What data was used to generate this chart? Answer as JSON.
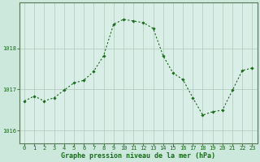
{
  "x": [
    0,
    1,
    2,
    3,
    4,
    5,
    6,
    7,
    8,
    9,
    10,
    11,
    12,
    13,
    14,
    15,
    16,
    17,
    18,
    19,
    20,
    21,
    22,
    23
  ],
  "y": [
    1016.72,
    1016.84,
    1016.72,
    1016.8,
    1016.98,
    1017.16,
    1017.22,
    1017.44,
    1017.82,
    1018.58,
    1018.7,
    1018.66,
    1018.62,
    1018.48,
    1017.82,
    1017.4,
    1017.24,
    1016.8,
    1016.38,
    1016.46,
    1016.5,
    1016.98,
    1017.46,
    1017.52
  ],
  "line_color": "#1a6b1a",
  "marker": "D",
  "markersize": 1.8,
  "linewidth": 0.8,
  "background_color": "#cce8dc",
  "plot_bg_color": "#d8eee6",
  "grid_color": "#b0c8bc",
  "text_color": "#1a6b1a",
  "xlabel": "Graphe pression niveau de la mer (hPa)",
  "xlabel_fontsize": 6.0,
  "ylabel_ticks": [
    1016,
    1017,
    1018
  ],
  "ylim": [
    1015.7,
    1019.1
  ],
  "xlim": [
    -0.5,
    23.5
  ],
  "xtick_labels": [
    "0",
    "1",
    "2",
    "3",
    "4",
    "5",
    "6",
    "7",
    "8",
    "9",
    "10",
    "11",
    "12",
    "13",
    "14",
    "15",
    "16",
    "17",
    "18",
    "19",
    "20",
    "21",
    "22",
    "23"
  ],
  "tick_fontsize": 5.0,
  "spine_color": "#557755",
  "dash_on": 2,
  "dash_off": 2
}
